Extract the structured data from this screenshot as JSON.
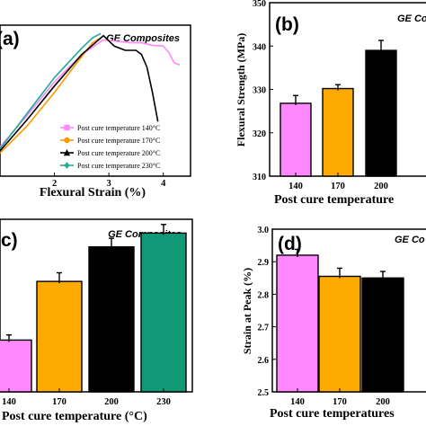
{
  "chart_data": [
    {
      "type": "line",
      "panel": "(a)",
      "title": "GE Composites",
      "xlabel": "Flexural Strain (%)",
      "ylabel": "",
      "x_ticks": [
        "2",
        "3",
        "4"
      ],
      "xlim": [
        1,
        4.5
      ],
      "ylim": [
        0,
        360
      ],
      "legend_position": "bottom-right",
      "series": [
        {
          "name": "Post cure temperature 140°C",
          "color": "#ff88ff",
          "marker": "square",
          "x": [
            1.0,
            1.5,
            2.0,
            2.5,
            2.9,
            3.1,
            3.4,
            3.6,
            3.8,
            4.0,
            4.1,
            4.2,
            4.3
          ],
          "y": [
            70,
            145,
            225,
            290,
            325,
            322,
            318,
            318,
            312,
            310,
            295,
            270,
            265
          ]
        },
        {
          "name": "Post cure temperature 170°C",
          "color": "#ff9900",
          "marker": "circle",
          "x": [
            1.0,
            1.5,
            2.0,
            2.4,
            2.7,
            2.85
          ],
          "y": [
            55,
            120,
            200,
            268,
            318,
            330
          ]
        },
        {
          "name": "Post cure temperature 200°C",
          "color": "#000000",
          "marker": "triangle",
          "x": [
            1.0,
            1.5,
            2.0,
            2.5,
            2.9,
            3.1,
            3.3,
            3.5,
            3.6,
            3.7,
            3.8,
            3.9
          ],
          "y": [
            60,
            135,
            215,
            290,
            335,
            310,
            300,
            300,
            290,
            260,
            200,
            130
          ]
        },
        {
          "name": "Post cure temperature 230°C",
          "color": "#22aa99",
          "marker": "diamond",
          "x": [
            1.0,
            1.5,
            2.0,
            2.5,
            2.7,
            2.85
          ],
          "y": [
            65,
            150,
            235,
            305,
            330,
            340
          ]
        }
      ]
    },
    {
      "type": "bar",
      "panel": "(b)",
      "title": "GE Com",
      "xlabel": "Post cure temperature",
      "ylabel": "Flexural Strength (MPa)",
      "ylim": [
        310,
        350
      ],
      "y_ticks": [
        "310",
        "320",
        "330",
        "340",
        "350"
      ],
      "categories": [
        "140",
        "170",
        "200"
      ],
      "values": [
        326.8,
        330.2,
        339.0
      ],
      "errors": [
        1.8,
        0.9,
        2.3
      ],
      "colors": [
        "#ff88ff",
        "#ffaa00",
        "#000000"
      ]
    },
    {
      "type": "bar",
      "panel": "(c)",
      "title": "GE Composites",
      "xlabel": "Post cure temperature (°C)",
      "ylabel": "",
      "categories": [
        "140",
        "170",
        "200",
        "230"
      ],
      "values": [
        0.45,
        0.62,
        0.72,
        0.76
      ],
      "errors": [
        0.015,
        0.025,
        0.025,
        0.025
      ],
      "ylim": [
        0.3,
        0.8
      ],
      "colors": [
        "#ff88ff",
        "#ffaa00",
        "#000000",
        "#119977"
      ]
    },
    {
      "type": "bar",
      "panel": "(d)",
      "title": "GE Co",
      "xlabel": "Post cure temperatures",
      "ylabel": "Strain at Peak (%)",
      "ylim": [
        2.5,
        3.0
      ],
      "y_ticks": [
        "2.5",
        "2.6",
        "2.7",
        "2.8",
        "2.9",
        "3.0"
      ],
      "categories": [
        "140",
        "170",
        "200"
      ],
      "values": [
        2.92,
        2.855,
        2.85
      ],
      "errors": [
        0.018,
        0.025,
        0.02
      ],
      "colors": [
        "#ff88ff",
        "#ffaa00",
        "#000000"
      ]
    }
  ]
}
